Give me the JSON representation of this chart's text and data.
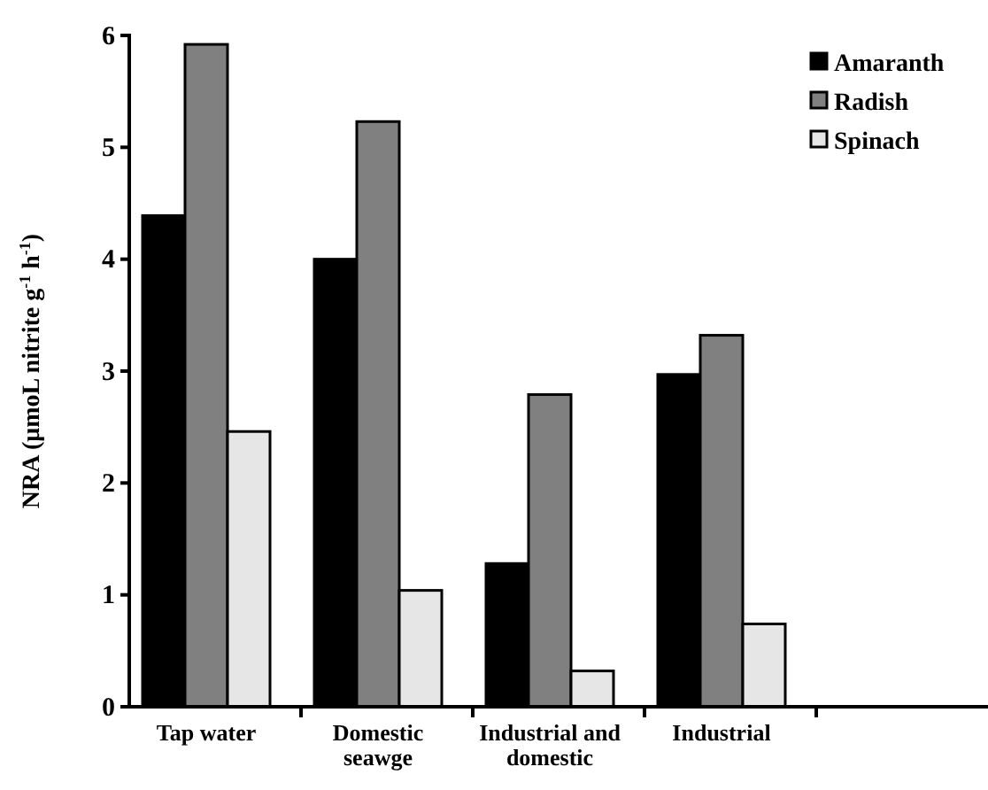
{
  "chart_data": {
    "type": "bar",
    "ylabel": "NRA (μmoL nitrite g$^{-1}$ h$^{-1}$)",
    "categories": [
      "Tap water",
      "Domestic seawge",
      "Industrial and domestic",
      "Industrial",
      null
    ],
    "series": [
      {
        "name": "Amaranth",
        "color": "#000000",
        "values": [
          4.39,
          4.0,
          1.28,
          2.97,
          null
        ]
      },
      {
        "name": "Radish",
        "color": "#808080",
        "values": [
          5.92,
          5.23,
          2.79,
          3.32,
          null
        ]
      },
      {
        "name": "Spinach",
        "color": "#e6e6e6",
        "values": [
          2.46,
          1.04,
          0.32,
          0.74,
          null
        ]
      }
    ],
    "ylim": [
      0,
      6
    ],
    "yticks": [
      0,
      1,
      2,
      3,
      4,
      5,
      6
    ],
    "legend": "top right"
  }
}
